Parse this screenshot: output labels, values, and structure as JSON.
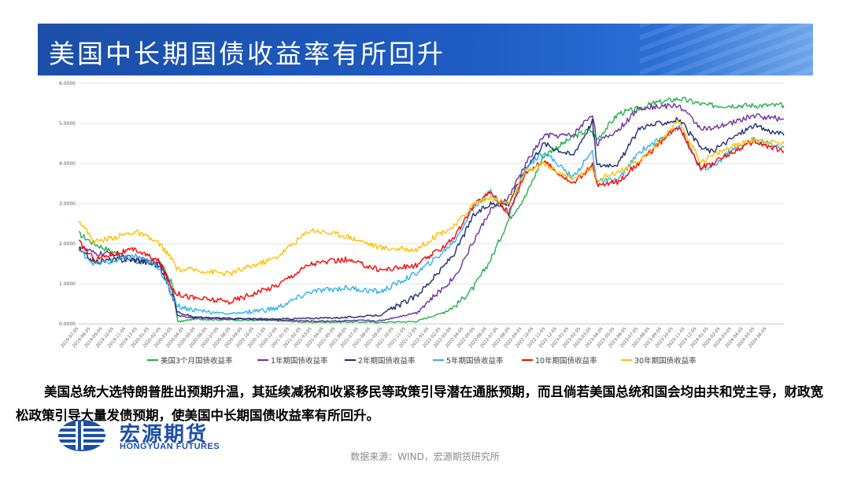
{
  "header": {
    "title": "美国中长期国债收益率有所回升"
  },
  "caption": {
    "text": "美国总统大选特朗普胜出预期升温，其延续减税和收紧移民等政策引导潜在通胀预期，而且倘若美国总统和国会均由共和党主导，财政宽松政策引导大量发债预期，使美国中长期国债收益率有所回升。"
  },
  "logo": {
    "cn": "宏源期货",
    "en": "HONGYUAN FUTURES"
  },
  "source": {
    "text": "数据来源：WIND，宏源期货研究所"
  },
  "chart_data": {
    "type": "line",
    "title": "",
    "xlabel": "",
    "ylabel": "",
    "ylim": [
      0,
      6
    ],
    "yticks": [
      "0.0000",
      "1.0000",
      "2.0000",
      "3.0000",
      "4.0000",
      "5.0000",
      "6.0000"
    ],
    "grid": true,
    "legend_position": "bottom",
    "x_ticks": [
      "2019-07-05",
      "2019-08-05",
      "2019-09-05",
      "2019-10-05",
      "2019-11-05",
      "2019-12-05",
      "2020-01-05",
      "2020-02-05",
      "2020-03-05",
      "2020-04-05",
      "2020-05-05",
      "2020-06-05",
      "2020-07-05",
      "2020-08-05",
      "2020-09-05",
      "2020-10-05",
      "2020-11-05",
      "2020-12-05",
      "2021-01-05",
      "2021-02-05",
      "2021-03-05",
      "2021-04-05",
      "2021-05-05",
      "2021-06-05",
      "2021-07-05",
      "2021-08-05",
      "2021-09-05",
      "2021-10-05",
      "2021-11-05",
      "2021-12-05",
      "2022-01-05",
      "2022-02-05",
      "2022-03-05",
      "2022-04-05",
      "2022-05-05",
      "2022-06-05",
      "2022-07-05",
      "2022-08-05",
      "2022-09-05",
      "2022-10-05",
      "2022-11-05",
      "2022-12-05",
      "2023-01-05",
      "2023-02-05",
      "2023-03-05",
      "2023-04-05",
      "2023-05-05",
      "2023-06-05",
      "2023-07-05",
      "2023-08-05",
      "2023-09-05",
      "2023-10-05",
      "2023-11-05",
      "2023-12-05",
      "2024-01-05",
      "2024-02-05",
      "2024-03-05",
      "2024-04-05",
      "2024-05-05",
      "2024-06-05"
    ],
    "series": [
      {
        "name": "美国3个月国债收益率",
        "color": "#22b14c",
        "x": [
          "2019-07-05",
          "2019-08-15",
          "2019-10-01",
          "2019-12-01",
          "2020-02-01",
          "2020-03-05",
          "2020-03-20",
          "2020-05-01",
          "2020-08-01",
          "2020-12-01",
          "2021-03-01",
          "2021-06-01",
          "2021-09-01",
          "2021-12-01",
          "2022-02-01",
          "2022-03-15",
          "2022-05-01",
          "2022-06-15",
          "2022-08-01",
          "2022-09-15",
          "2022-11-01",
          "2023-01-15",
          "2023-03-01",
          "2023-03-20",
          "2023-05-15",
          "2023-07-01",
          "2023-08-15",
          "2023-10-20",
          "2024-01-01",
          "2024-03-01",
          "2024-05-01",
          "2024-07-20"
        ],
        "y": [
          2.25,
          2.0,
          1.8,
          1.55,
          1.55,
          1.0,
          0.05,
          0.12,
          0.1,
          0.08,
          0.04,
          0.05,
          0.04,
          0.06,
          0.25,
          0.45,
          0.9,
          1.6,
          2.6,
          3.2,
          4.2,
          4.65,
          4.85,
          4.6,
          5.25,
          5.35,
          5.5,
          5.62,
          5.45,
          5.45,
          5.45,
          5.45
        ]
      },
      {
        "name": "1年期国债收益率",
        "color": "#7030a0",
        "x": [
          "2019-07-05",
          "2019-08-15",
          "2019-10-01",
          "2019-12-01",
          "2020-02-01",
          "2020-03-05",
          "2020-03-20",
          "2020-05-01",
          "2020-08-01",
          "2020-12-01",
          "2021-03-01",
          "2021-06-01",
          "2021-09-01",
          "2021-12-01",
          "2022-02-01",
          "2022-03-15",
          "2022-05-01",
          "2022-06-15",
          "2022-08-01",
          "2022-09-15",
          "2022-11-01",
          "2023-01-15",
          "2023-03-08",
          "2023-03-20",
          "2023-05-15",
          "2023-07-10",
          "2023-10-20",
          "2023-12-15",
          "2024-01-15",
          "2024-03-01",
          "2024-05-01",
          "2024-07-20"
        ],
        "y": [
          1.95,
          1.75,
          1.75,
          1.6,
          1.55,
          0.9,
          0.2,
          0.15,
          0.14,
          0.1,
          0.07,
          0.08,
          0.08,
          0.28,
          0.8,
          1.2,
          2.05,
          2.85,
          3.15,
          4.0,
          4.7,
          4.7,
          5.25,
          4.5,
          4.85,
          5.4,
          5.45,
          4.9,
          4.85,
          5.0,
          5.2,
          5.1
        ]
      },
      {
        "name": "2年期国债收益率",
        "color": "#1f2d6e",
        "x": [
          "2019-07-05",
          "2019-08-15",
          "2019-10-01",
          "2019-12-01",
          "2020-02-01",
          "2020-03-05",
          "2020-03-20",
          "2020-05-01",
          "2020-08-01",
          "2020-12-01",
          "2021-03-01",
          "2021-06-01",
          "2021-09-01",
          "2021-10-25",
          "2021-12-01",
          "2022-02-01",
          "2022-03-15",
          "2022-05-01",
          "2022-06-15",
          "2022-08-01",
          "2022-09-15",
          "2022-11-01",
          "2023-01-15",
          "2023-03-08",
          "2023-03-20",
          "2023-05-15",
          "2023-07-10",
          "2023-10-20",
          "2023-12-15",
          "2024-01-15",
          "2024-03-01",
          "2024-05-01",
          "2024-07-20"
        ],
        "y": [
          1.85,
          1.55,
          1.6,
          1.6,
          1.45,
          0.7,
          0.3,
          0.17,
          0.13,
          0.12,
          0.14,
          0.16,
          0.22,
          0.5,
          0.68,
          1.3,
          1.8,
          2.7,
          3.0,
          3.0,
          3.9,
          4.5,
          4.2,
          5.05,
          3.95,
          4.0,
          4.9,
          5.1,
          4.4,
          4.3,
          4.6,
          4.95,
          4.7
        ]
      },
      {
        "name": "5年期国债收益率",
        "color": "#2db4f0",
        "x": [
          "2019-07-05",
          "2019-08-15",
          "2019-10-01",
          "2019-12-01",
          "2020-02-01",
          "2020-03-05",
          "2020-03-20",
          "2020-05-01",
          "2020-08-01",
          "2020-12-01",
          "2021-03-01",
          "2021-06-01",
          "2021-09-01",
          "2021-12-01",
          "2022-02-01",
          "2022-03-15",
          "2022-05-01",
          "2022-06-15",
          "2022-08-01",
          "2022-09-15",
          "2022-11-01",
          "2023-01-15",
          "2023-03-08",
          "2023-03-20",
          "2023-05-15",
          "2023-07-10",
          "2023-10-20",
          "2023-12-15",
          "2024-01-15",
          "2024-03-01",
          "2024-05-01",
          "2024-07-20"
        ],
        "y": [
          1.85,
          1.5,
          1.55,
          1.7,
          1.4,
          0.7,
          0.45,
          0.35,
          0.25,
          0.38,
          0.8,
          0.9,
          0.8,
          1.25,
          1.7,
          2.1,
          2.9,
          3.3,
          2.7,
          3.9,
          4.3,
          3.65,
          4.3,
          3.55,
          3.6,
          4.3,
          4.9,
          3.85,
          3.9,
          4.3,
          4.6,
          4.4
        ]
      },
      {
        "name": "10年期国债收益率",
        "color": "#ff0000",
        "x": [
          "2019-07-05",
          "2019-08-15",
          "2019-10-01",
          "2019-12-01",
          "2020-02-01",
          "2020-03-05",
          "2020-03-20",
          "2020-05-01",
          "2020-08-01",
          "2020-12-01",
          "2021-03-01",
          "2021-06-01",
          "2021-09-01",
          "2021-12-01",
          "2022-02-01",
          "2022-03-15",
          "2022-05-01",
          "2022-06-15",
          "2022-08-01",
          "2022-09-15",
          "2022-11-01",
          "2023-01-15",
          "2023-03-08",
          "2023-03-20",
          "2023-05-15",
          "2023-07-10",
          "2023-10-20",
          "2023-12-15",
          "2024-01-15",
          "2024-03-01",
          "2024-05-01",
          "2024-07-20"
        ],
        "y": [
          2.05,
          1.6,
          1.75,
          1.85,
          1.55,
          0.9,
          0.75,
          0.65,
          0.55,
          0.95,
          1.5,
          1.6,
          1.35,
          1.45,
          1.85,
          2.2,
          2.95,
          3.3,
          2.75,
          3.8,
          4.05,
          3.5,
          3.95,
          3.45,
          3.55,
          4.05,
          4.95,
          3.9,
          4.0,
          4.25,
          4.55,
          4.3
        ]
      },
      {
        "name": "30年期国债收益率",
        "color": "#ffc000",
        "x": [
          "2019-07-05",
          "2019-08-15",
          "2019-10-01",
          "2019-12-01",
          "2020-02-01",
          "2020-03-05",
          "2020-03-20",
          "2020-05-01",
          "2020-08-01",
          "2020-12-01",
          "2021-03-01",
          "2021-06-01",
          "2021-09-01",
          "2021-12-01",
          "2022-02-01",
          "2022-03-15",
          "2022-05-01",
          "2022-06-15",
          "2022-08-01",
          "2022-09-15",
          "2022-11-01",
          "2023-01-15",
          "2023-03-08",
          "2023-03-20",
          "2023-05-15",
          "2023-07-10",
          "2023-10-20",
          "2023-12-15",
          "2024-01-15",
          "2024-03-01",
          "2024-05-01",
          "2024-07-20"
        ],
        "y": [
          2.6,
          2.05,
          2.15,
          2.3,
          2.0,
          1.6,
          1.35,
          1.35,
          1.25,
          1.65,
          2.35,
          2.2,
          1.9,
          1.85,
          2.25,
          2.45,
          3.0,
          3.15,
          3.0,
          3.8,
          4.0,
          3.6,
          3.9,
          3.6,
          3.8,
          4.05,
          5.05,
          4.05,
          4.2,
          4.4,
          4.6,
          4.5
        ]
      }
    ]
  }
}
